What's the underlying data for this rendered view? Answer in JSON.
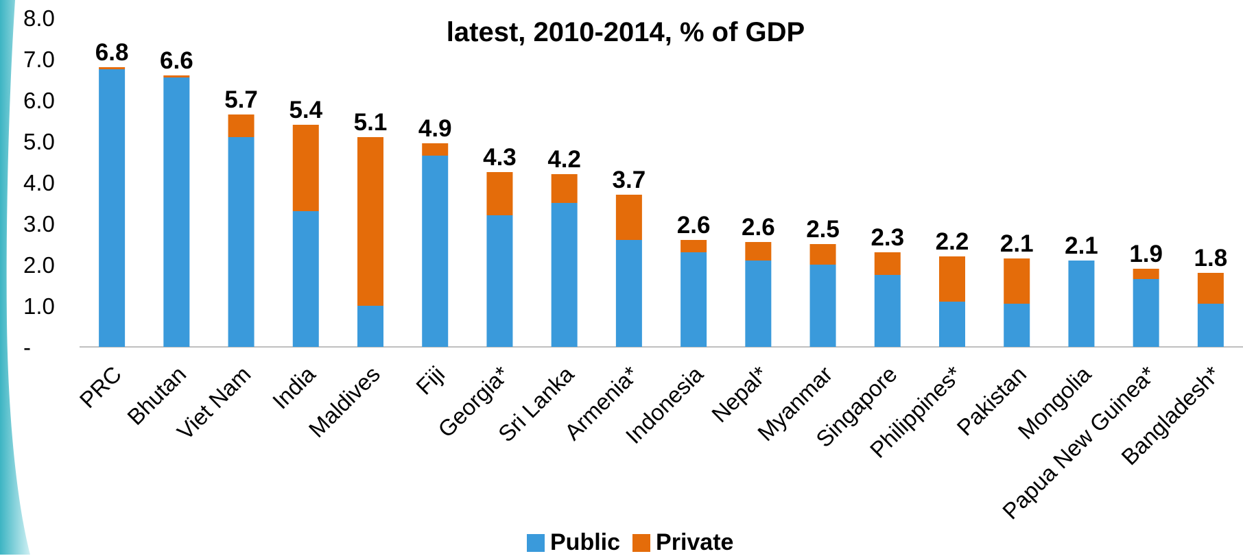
{
  "colors": {
    "public": "#3A9ADB",
    "private": "#E46C0A",
    "axis": "#BFBFBF",
    "text": "#000000"
  },
  "legend": {
    "public_label": "Public",
    "private_label": "Private",
    "position": "bottom-center"
  },
  "chart_data": {
    "type": "bar",
    "stacked": true,
    "title": "latest, 2010-2014,  % of GDP",
    "xlabel": "",
    "ylabel": "",
    "ylim": [
      0,
      8
    ],
    "yticks": [
      "-",
      "1.0",
      "2.0",
      "3.0",
      "4.0",
      "5.0",
      "6.0",
      "7.0",
      "8.0"
    ],
    "grid": false,
    "categories": [
      "PRC",
      "Bhutan",
      "Viet Nam",
      "India",
      "Maldives",
      "Fiji",
      "Georgia*",
      "Sri Lanka",
      "Armenia*",
      "Indonesia",
      "Nepal*",
      "Myanmar",
      "Singapore",
      "Philippines*",
      "Pakistan",
      "Mongolia",
      "Papua New Guinea*",
      "Bangladesh*"
    ],
    "series": [
      {
        "name": "Public",
        "values": [
          6.75,
          6.55,
          5.1,
          3.3,
          1.0,
          4.65,
          3.2,
          3.5,
          2.6,
          2.3,
          2.1,
          2.0,
          1.75,
          1.1,
          1.05,
          2.1,
          1.65,
          1.05
        ]
      },
      {
        "name": "Private",
        "values": [
          0.05,
          0.05,
          0.55,
          2.1,
          4.1,
          0.3,
          1.05,
          0.7,
          1.1,
          0.3,
          0.45,
          0.5,
          0.55,
          1.1,
          1.1,
          0.0,
          0.25,
          0.75
        ]
      }
    ],
    "totals": [
      "6.8",
      "6.6",
      "5.7",
      "5.4",
      "5.1",
      "4.9",
      "4.3",
      "4.2",
      "3.7",
      "2.6",
      "2.6",
      "2.5",
      "2.3",
      "2.2",
      "2.1",
      "2.1",
      "1.9",
      "1.8"
    ]
  }
}
